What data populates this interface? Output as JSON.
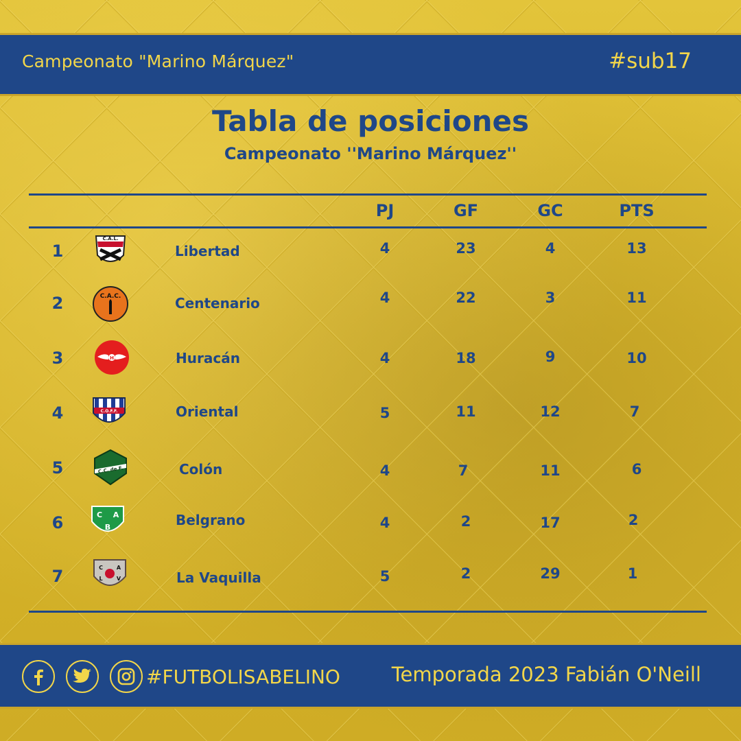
{
  "header": {
    "title": "Campeonato \"Marino Márquez\"",
    "tag": "#sub17"
  },
  "main": {
    "title": "Tabla de posiciones",
    "subtitle": "Campeonato ''Marino Márquez''"
  },
  "table": {
    "columns": [
      "PJ",
      "GF",
      "GC",
      "PTS"
    ],
    "rows": [
      {
        "pos": "1",
        "team": "Libertad",
        "crest": "libertad-crest",
        "crest_text": "C.A.L.",
        "pj": "4",
        "gf": "23",
        "gc": "4",
        "pts": "13"
      },
      {
        "pos": "2",
        "team": "Centenario",
        "crest": "centenario-crest",
        "crest_text": "C.A.C.",
        "pj": "4",
        "gf": "22",
        "gc": "3",
        "pts": "11"
      },
      {
        "pos": "3",
        "team": "Huracán",
        "crest": "huracan-crest",
        "crest_text": "H",
        "pj": "4",
        "gf": "18",
        "gc": "9",
        "pts": "10"
      },
      {
        "pos": "4",
        "team": "Oriental",
        "crest": "oriental-crest",
        "crest_text": "C.O.F.F.",
        "pj": "5",
        "gf": "11",
        "gc": "12",
        "pts": "7"
      },
      {
        "pos": "5",
        "team": "Colón",
        "crest": "colon-crest",
        "crest_text": "C.C. de F.",
        "pj": "4",
        "gf": "7",
        "gc": "11",
        "pts": "6"
      },
      {
        "pos": "6",
        "team": "Belgrano",
        "crest": "belgrano-crest",
        "crest_text": "CAB",
        "pj": "4",
        "gf": "2",
        "gc": "17",
        "pts": "2"
      },
      {
        "pos": "7",
        "team": "La Vaquilla",
        "crest": "lavaquilla-crest",
        "crest_text": "CALV",
        "pj": "5",
        "gf": "2",
        "gc": "29",
        "pts": "1"
      }
    ]
  },
  "footer": {
    "social_icons": [
      "facebook-icon",
      "twitter-icon",
      "instagram-icon"
    ],
    "hashtag": "#FUTBOLISABELINO",
    "season": "Temporada 2023 Fabián O'Neill"
  },
  "colors": {
    "band": "#1f4788",
    "accent_text": "#f2d64a",
    "background": "#d9b82a"
  }
}
